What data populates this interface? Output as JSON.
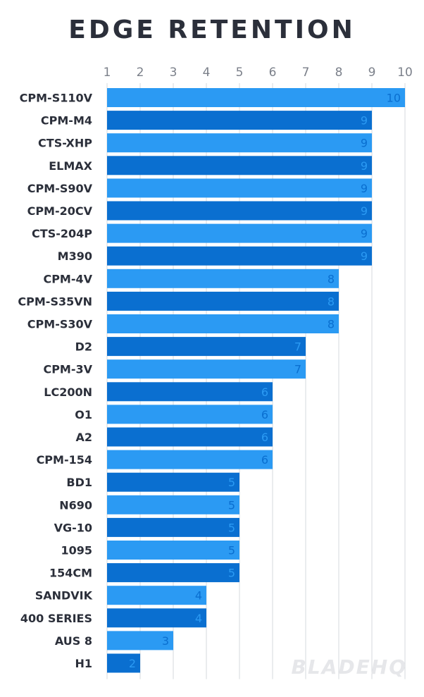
{
  "chart_data": {
    "type": "bar",
    "orientation": "horizontal",
    "title": "EDGE RETENTION",
    "xlabel": "",
    "ylabel": "",
    "xlim": [
      1,
      10
    ],
    "ticks": [
      "1",
      "2",
      "3",
      "4",
      "5",
      "6",
      "7",
      "8",
      "9",
      "10"
    ],
    "grid": true,
    "categories": [
      "CPM-S110V",
      "CPM-M4",
      "CTS-XHP",
      "ELMAX",
      "CPM-S90V",
      "CPM-20CV",
      "CTS-204P",
      "M390",
      "CPM-4V",
      "CPM-S35VN",
      "CPM-S30V",
      "D2",
      "CPM-3V",
      "LC200N",
      "O1",
      "A2",
      "CPM-154",
      "BD1",
      "N690",
      "VG-10",
      "1095",
      "154CM",
      "SANDVIK",
      "400 SERIES",
      "AUS 8",
      "H1"
    ],
    "values": [
      10,
      9,
      9,
      9,
      9,
      9,
      9,
      9,
      8,
      8,
      8,
      7,
      7,
      6,
      6,
      6,
      6,
      5,
      5,
      5,
      5,
      5,
      4,
      4,
      3,
      2
    ],
    "colors": {
      "light": "#2b9af3",
      "dark": "#0a6fd0",
      "label_on_light": "#0a6fd0",
      "label_on_dark": "#2b9af3"
    },
    "watermark": "BLADEHQ"
  }
}
